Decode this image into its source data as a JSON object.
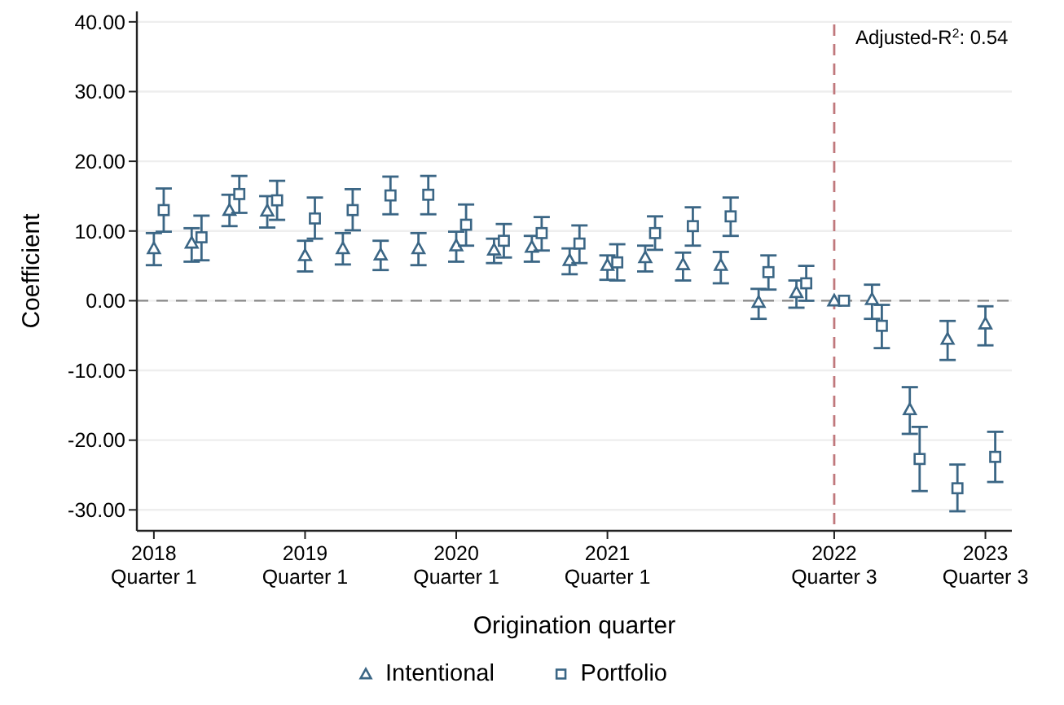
{
  "chart_data": {
    "type": "scatter",
    "xlabel": "Origination quarter",
    "ylabel": "Coefficient",
    "annotations": [
      "Adjusted-R$^{2}$: 0.54"
    ],
    "categories": [
      "2018 Quarter 1",
      null,
      null,
      null,
      "2019 Quarter 1",
      null,
      null,
      null,
      "2020 Quarter 1",
      null,
      null,
      null,
      "2021 Quarter 1",
      null,
      null,
      null,
      null,
      null,
      "2022 Quarter 3",
      null,
      null,
      null,
      "2023 Quarter 3"
    ],
    "ylim": [
      -33,
      41.5
    ],
    "yticks": [
      {
        "value": -30,
        "label": "-30.00"
      },
      {
        "value": -20,
        "label": "-20.00"
      },
      {
        "value": -10,
        "label": "-10.00"
      },
      {
        "value": 0,
        "label": "0.00"
      },
      {
        "value": 10,
        "label": "10.00"
      },
      {
        "value": 20,
        "label": "20.00"
      },
      {
        "value": 30,
        "label": "30.00"
      },
      {
        "value": 40,
        "label": "40.00"
      }
    ],
    "grid": "y",
    "legend": "bottom",
    "ref_lines": [
      {
        "axis": "y",
        "value": 0,
        "color": "#888888",
        "line_style": "dashed"
      },
      {
        "axis": "x",
        "value": "2022 Quarter 3",
        "color": "#c0787c",
        "line_style": "dashed"
      }
    ],
    "series": [
      {
        "name": "Intentional",
        "color": "#3b6685",
        "marker": "triangle",
        "values": [
          7.5,
          8.3,
          13.0,
          12.9,
          6.5,
          7.5,
          6.6,
          7.5,
          7.9,
          7.3,
          7.7,
          5.8,
          5.1,
          6.2,
          5.2,
          5.1,
          -0.2,
          1.2,
          0,
          0.2,
          -15.6,
          -5.5,
          -3.3
        ],
        "errors": [
          [
            5.1,
            9.7
          ],
          [
            5.6,
            10.4
          ],
          [
            10.7,
            15.2
          ],
          [
            10.5,
            15.0
          ],
          [
            4.2,
            8.6
          ],
          [
            5.2,
            9.7
          ],
          [
            4.4,
            8.6
          ],
          [
            5.1,
            9.7
          ],
          [
            5.6,
            9.9
          ],
          [
            5.4,
            8.9
          ],
          [
            5.6,
            9.3
          ],
          [
            3.8,
            7.5
          ],
          [
            3.0,
            6.5
          ],
          [
            4.2,
            7.9
          ],
          [
            2.9,
            6.9
          ],
          [
            2.5,
            7.0
          ],
          [
            -2.6,
            1.7
          ],
          [
            -1.0,
            2.9
          ],
          null,
          [
            -2.6,
            2.3
          ],
          [
            -19.1,
            -12.4
          ],
          [
            -8.5,
            -2.9
          ],
          [
            -6.4,
            -0.8
          ]
        ]
      },
      {
        "name": "Portfolio",
        "color": "#3b6685",
        "marker": "square",
        "values": [
          13.0,
          9.1,
          15.3,
          14.4,
          11.8,
          13.0,
          15.1,
          15.2,
          10.9,
          8.6,
          9.7,
          8.2,
          5.5,
          9.7,
          10.7,
          12.1,
          4.1,
          2.5,
          0,
          -3.6,
          -22.7,
          -26.9,
          -22.4
        ],
        "errors": [
          [
            9.9,
            16.1
          ],
          [
            5.8,
            12.2
          ],
          [
            12.6,
            17.9
          ],
          [
            11.6,
            17.2
          ],
          [
            8.9,
            14.8
          ],
          [
            10.1,
            16.0
          ],
          [
            12.4,
            17.8
          ],
          [
            12.4,
            17.9
          ],
          [
            7.9,
            13.8
          ],
          [
            6.2,
            11.0
          ],
          [
            7.2,
            12.0
          ],
          [
            5.4,
            10.8
          ],
          [
            2.9,
            8.1
          ],
          [
            7.3,
            12.1
          ],
          [
            7.9,
            13.4
          ],
          [
            9.3,
            14.8
          ],
          [
            1.6,
            6.5
          ],
          [
            0,
            5.0
          ],
          null,
          [
            -6.8,
            -0.6
          ],
          [
            -27.3,
            -18.1
          ],
          [
            -30.2,
            -23.5
          ],
          [
            -26.0,
            -18.8
          ]
        ]
      }
    ]
  }
}
